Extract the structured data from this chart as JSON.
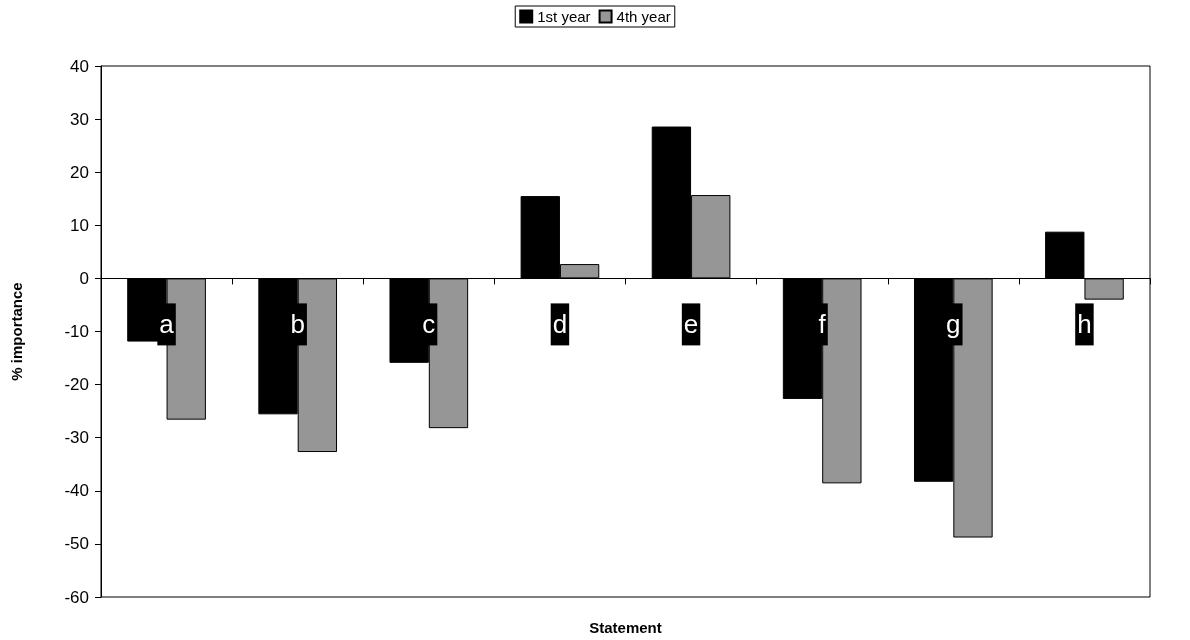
{
  "chart_data": {
    "type": "bar",
    "xlabel": "Statement",
    "ylabel": "% importance",
    "categories": [
      "a",
      "b",
      "c",
      "d",
      "e",
      "f",
      "g",
      "h"
    ],
    "series": [
      {
        "name": "1st year",
        "color": "#000000",
        "values": [
          -11.9,
          -25.6,
          -15.9,
          15.5,
          28.6,
          -22.7,
          -38.3,
          8.8
        ]
      },
      {
        "name": "4th year",
        "color": "#969696",
        "values": [
          -26.6,
          -32.7,
          -28.2,
          2.7,
          15.7,
          -38.6,
          -48.8,
          -4.0
        ]
      }
    ],
    "ylim": [
      -60,
      40
    ],
    "yticks": [
      -60,
      -50,
      -40,
      -30,
      -20,
      -10,
      0,
      10,
      20,
      30,
      40
    ],
    "grid": false,
    "legend": "top"
  }
}
